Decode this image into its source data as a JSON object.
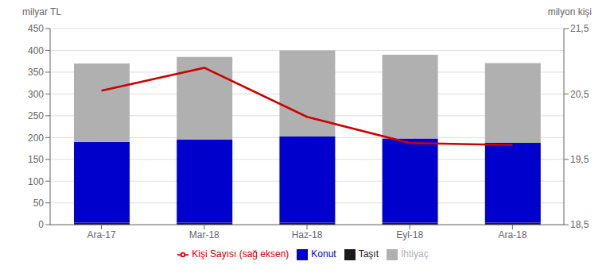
{
  "chart_data": {
    "type": "bar",
    "stacked": true,
    "categories": [
      "Ara-17",
      "Mar-18",
      "Haz-18",
      "Eyl-18",
      "Ara-18"
    ],
    "series": [
      {
        "name": "Taşıt",
        "color": "#1a1a1a",
        "values": [
          5,
          5,
          5,
          5,
          5
        ]
      },
      {
        "name": "Konut",
        "color": "#0000cc",
        "values": [
          185,
          190,
          198,
          193,
          183
        ]
      },
      {
        "name": "İhtiyaç",
        "color": "#b0b0b0",
        "values": [
          180,
          190,
          197,
          192,
          183
        ]
      },
      {
        "name": "Kişi Sayısı (sağ eksen)",
        "type": "line",
        "axis": "y2",
        "color": "#cc0000",
        "values": [
          20.55,
          20.9,
          20.15,
          19.75,
          19.72
        ]
      }
    ],
    "ylabel": "milyar TL",
    "y2label": "milyon kişi",
    "ylim": [
      0,
      450
    ],
    "yticks": [
      0,
      50,
      100,
      150,
      200,
      250,
      300,
      350,
      400,
      450
    ],
    "y2lim": [
      18.5,
      21.5
    ],
    "y2ticks": [
      {
        "value": 18.5,
        "label": "18,5"
      },
      {
        "value": 19.5,
        "label": "19,5"
      },
      {
        "value": 20.5,
        "label": "20,5"
      },
      {
        "value": 21.5,
        "label": "21,5"
      }
    ],
    "grid": true,
    "legend": "bottom"
  }
}
